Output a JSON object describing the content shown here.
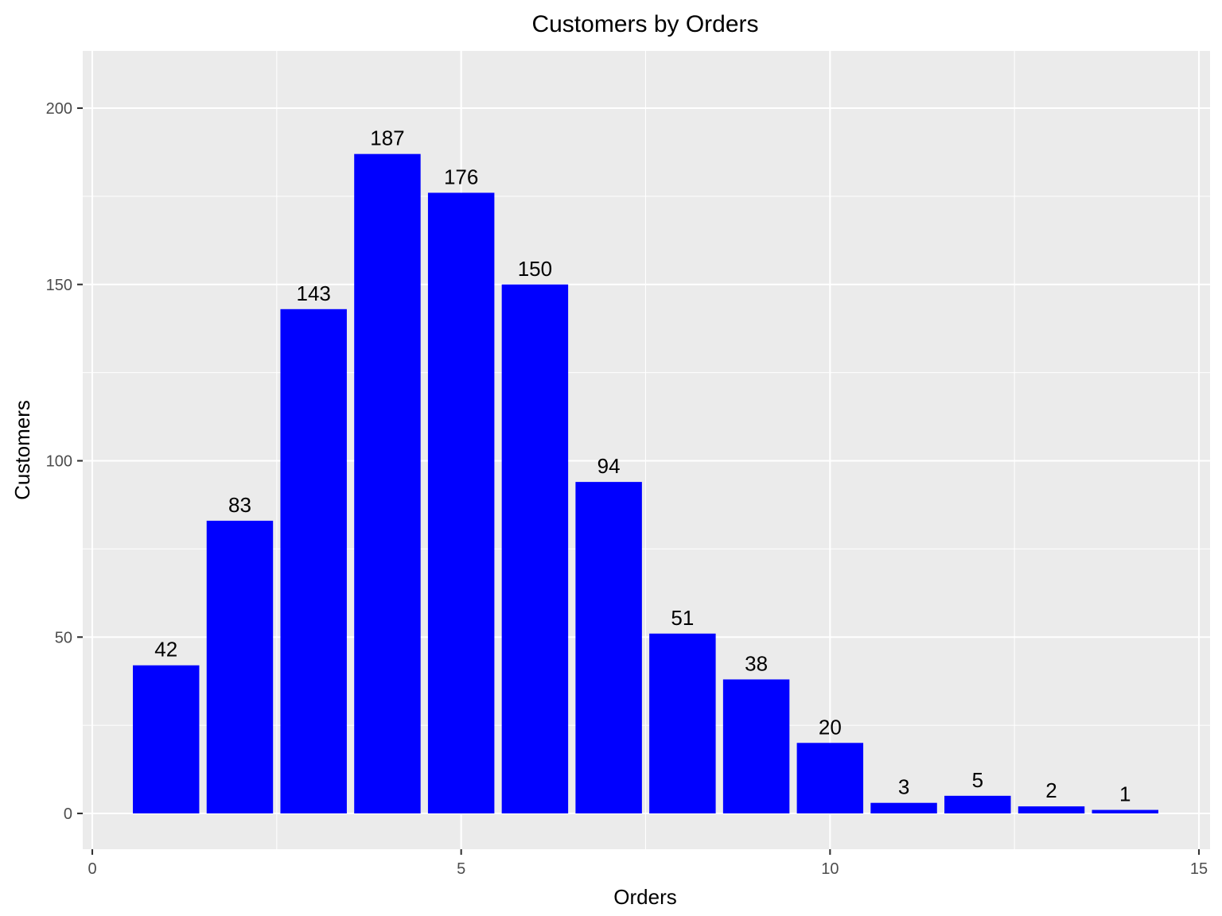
{
  "chart_data": {
    "type": "bar",
    "title": "Customers by Orders",
    "xlabel": "Orders",
    "ylabel": "Customers",
    "x": [
      1,
      2,
      3,
      4,
      5,
      6,
      7,
      8,
      9,
      10,
      11,
      12,
      13,
      14
    ],
    "values": [
      42,
      83,
      143,
      187,
      176,
      150,
      94,
      51,
      38,
      20,
      3,
      5,
      2,
      1
    ],
    "bar_color": "#0000ff",
    "data_labels": true,
    "xlim": [
      0,
      15
    ],
    "ylim": [
      0,
      200
    ],
    "xticks": [
      0,
      5,
      10,
      15
    ],
    "yticks": [
      0,
      50,
      100,
      150,
      200
    ],
    "grid": true,
    "legend": "none"
  }
}
